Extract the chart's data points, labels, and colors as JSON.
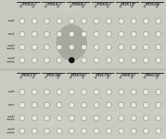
{
  "top_headers": [
    "H3R2",
    "H3K4",
    "H3R8",
    "H3K9",
    "H3R17",
    "H3R26"
  ],
  "bottom_headers": [
    "H3K27",
    "H3K36",
    "H3K56",
    "H3K79",
    "H4R3",
    "H4K20"
  ],
  "row_labels": [
    "me0",
    "me1",
    "me2/\nme2s",
    "me3/\nme2s"
  ],
  "sub_labels": [
    "100g",
    "500g"
  ],
  "n_cols": 6,
  "n_rows": 4,
  "n_subcols": 2,
  "positive_spot": {
    "panel": 0,
    "col": 2,
    "subcol": 0,
    "row": 3
  },
  "panel_bg": "#c8c8c0",
  "panel_bg2": "#cacac2",
  "smear_color": "#8a8a80",
  "smear2_color": "#a0a098",
  "dot_fc": "#e8e8e0",
  "dot_ec": "#888880",
  "pos_dot_fc": "#101010",
  "pos_dot_ec": "#000000",
  "figsize": [
    2.4,
    2.0
  ],
  "dpi": 100,
  "fig_bg": "#c0c0b8"
}
